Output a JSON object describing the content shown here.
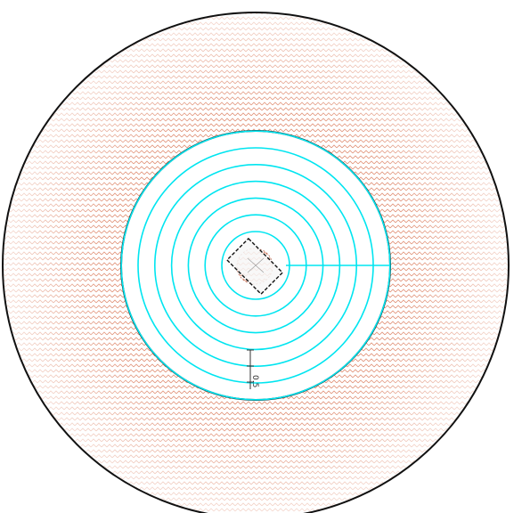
{
  "drawing": {
    "dimension_label": "0.5",
    "colors": {
      "background": "#ffffff",
      "outline": "#111111",
      "spiral": "#00e5f0",
      "hatch": "#d9694a",
      "dimension": "#333333"
    },
    "parts": {
      "outer_ring": "hatched-annulus",
      "inner_disc": "spiral-coil-area",
      "spiral_turns": 7,
      "center_pad": "rectangular-pad"
    }
  }
}
